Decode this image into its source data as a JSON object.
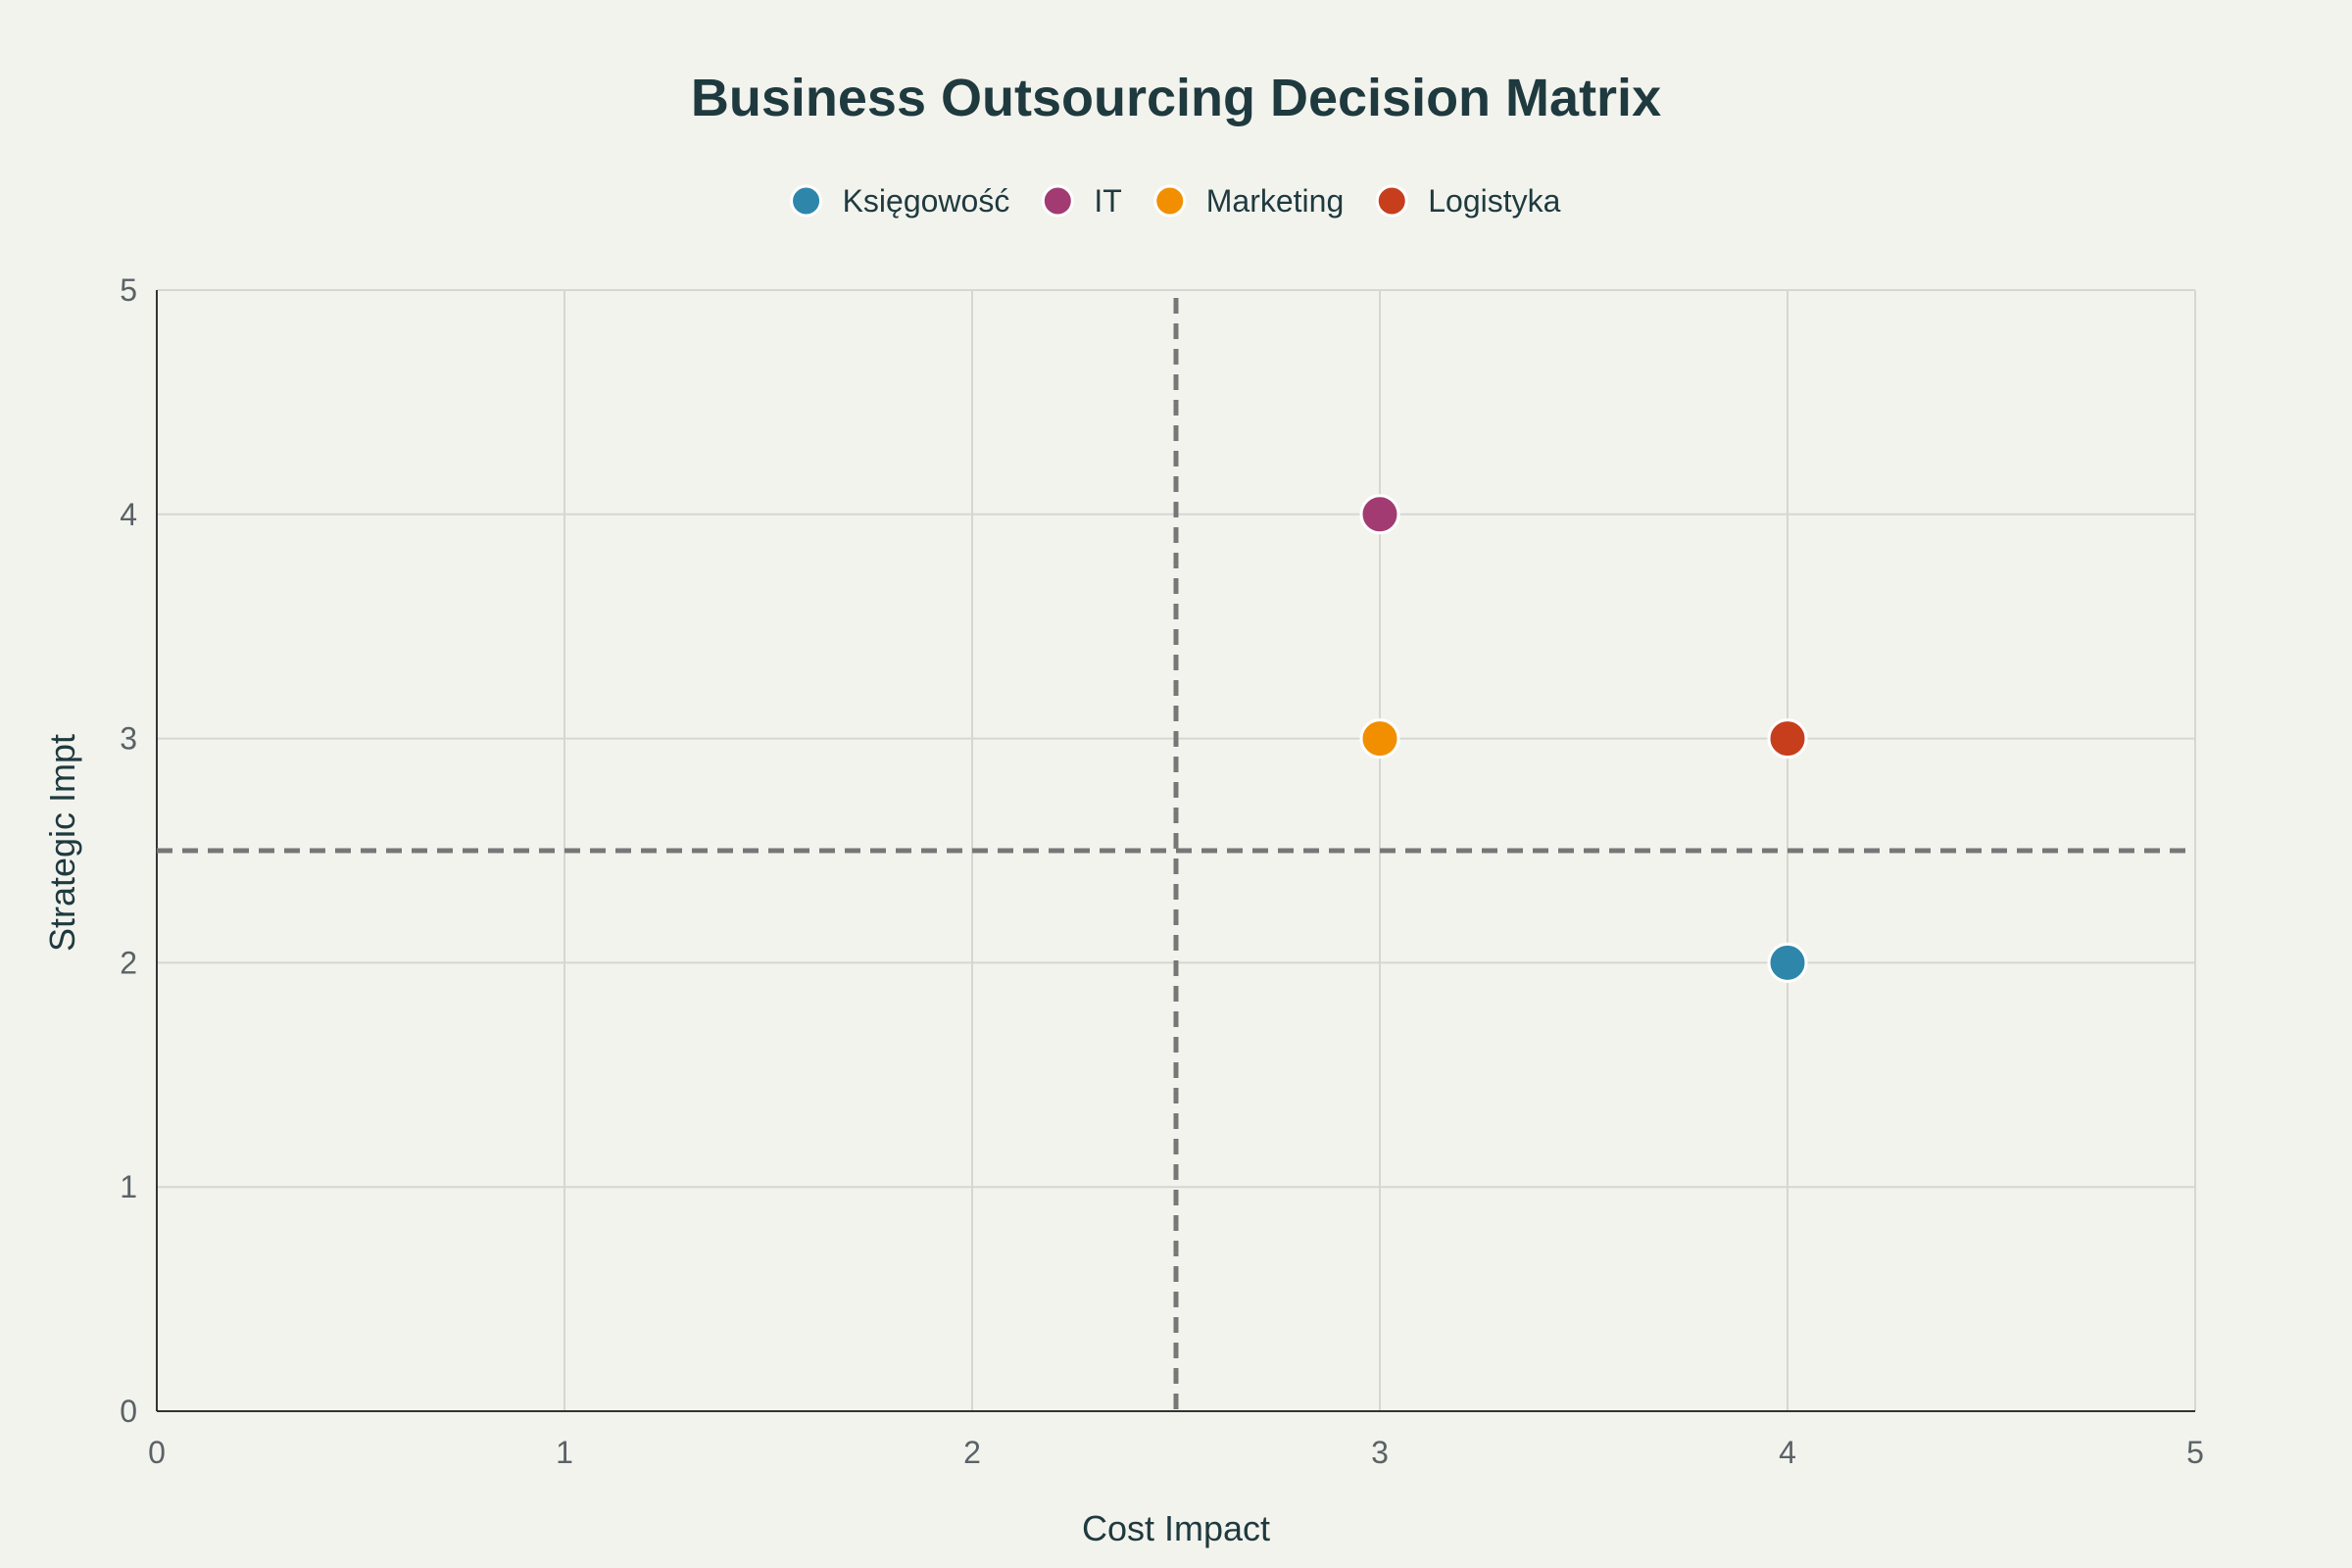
{
  "chart_data": {
    "type": "scatter",
    "title": "Business Outsourcing Decision Matrix",
    "xlabel": "Cost Impact",
    "ylabel": "Strategic Impt",
    "xlim": [
      0,
      5
    ],
    "ylim": [
      0,
      5
    ],
    "x_ticks": [
      "0",
      "1",
      "2",
      "3",
      "4",
      "5"
    ],
    "y_ticks": [
      "0",
      "1",
      "2",
      "3",
      "4",
      "5"
    ],
    "grid": true,
    "legend_position": "top-center",
    "thresholds": {
      "x": 2.5,
      "y": 2.5
    },
    "series": [
      {
        "name": "Księgowość",
        "color": "#2e86ab",
        "x": 4,
        "y": 2
      },
      {
        "name": "IT",
        "color": "#a23b72",
        "x": 3,
        "y": 4
      },
      {
        "name": "Marketing",
        "color": "#f18f01",
        "x": 3,
        "y": 3
      },
      {
        "name": "Logistyka",
        "color": "#c73e1d",
        "x": 4,
        "y": 3
      }
    ]
  }
}
